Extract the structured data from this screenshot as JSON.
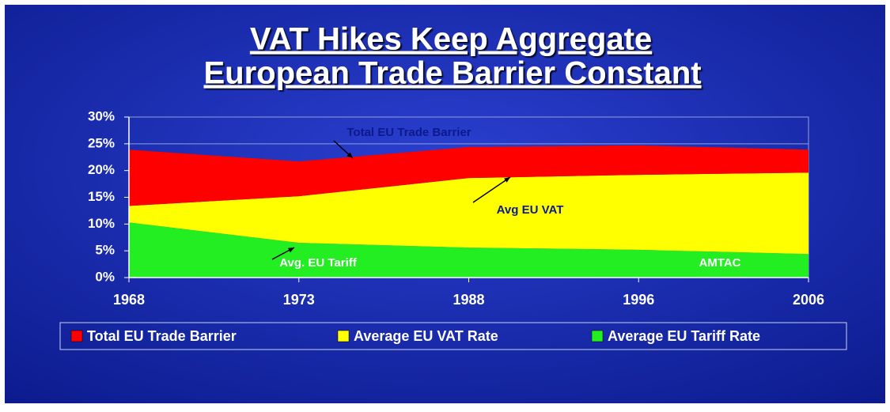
{
  "chart_data": {
    "type": "stacked_area",
    "title": [
      "VAT Hikes Keep Aggregate",
      "European Trade Barrier Constant"
    ],
    "categories": [
      "1968",
      "1973",
      "1988",
      "1996",
      "2006"
    ],
    "series": [
      {
        "name": "Total EU Trade Barrier",
        "color": "#ff0000",
        "values": [
          10.5,
          6.5,
          5.8,
          5.5,
          4.3
        ]
      },
      {
        "name": "Average EU VAT Rate",
        "color": "#ffff00",
        "values": [
          3.1,
          8.7,
          13.0,
          14.0,
          15.2
        ]
      },
      {
        "name": "Average EU Tariff Rate",
        "color": "#22ee22",
        "values": [
          10.3,
          6.5,
          5.6,
          5.2,
          4.4
        ]
      }
    ],
    "ylim": [
      0,
      30
    ],
    "yticks": [
      {
        "value": 0,
        "label": "0%"
      },
      {
        "value": 5,
        "label": "5%"
      },
      {
        "value": 10,
        "label": "10%"
      },
      {
        "value": 15,
        "label": "15%"
      },
      {
        "value": 20,
        "label": "20%"
      },
      {
        "value": 25,
        "label": "25%"
      },
      {
        "value": 30,
        "label": "30%"
      }
    ],
    "grid": true,
    "annotations": [
      "Total EU Trade Barrier",
      "Avg  EU VAT",
      "Avg. EU Tariff",
      "AMTAC"
    ]
  }
}
